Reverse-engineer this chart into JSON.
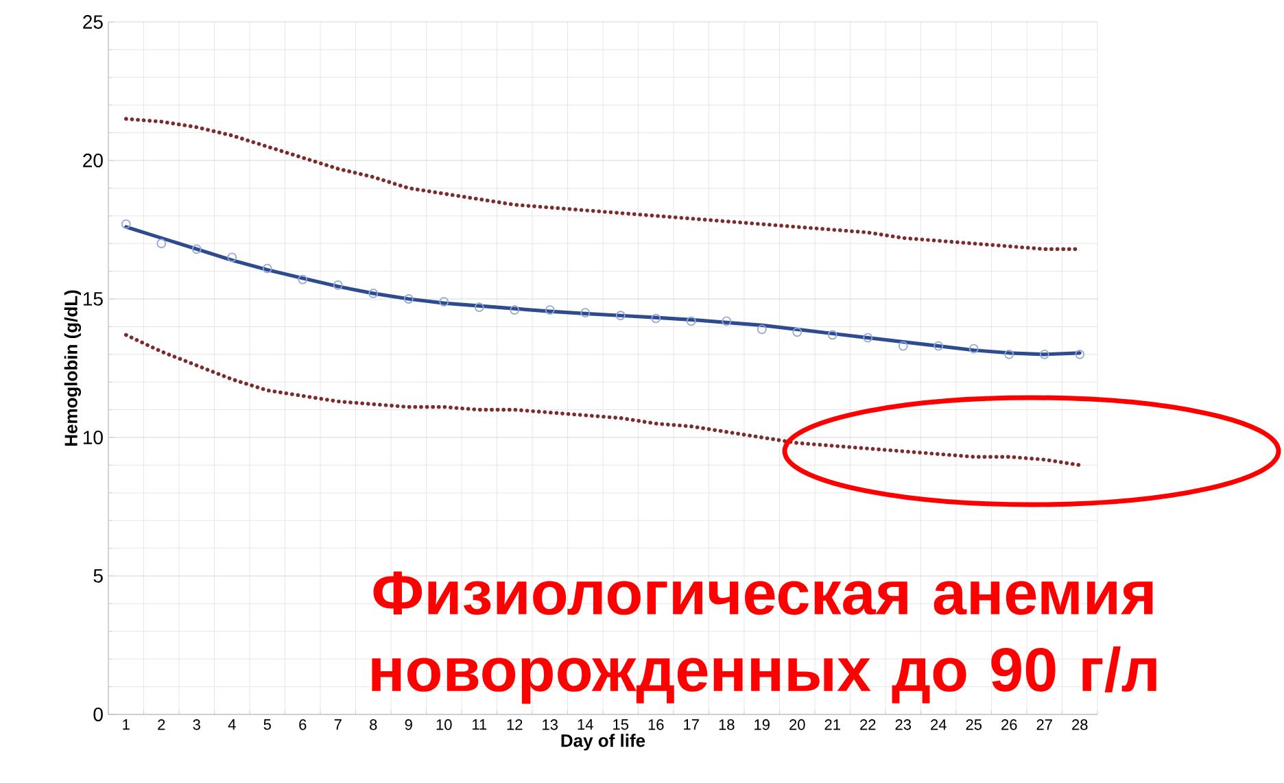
{
  "chart_data": {
    "type": "line",
    "xlabel": "Day of life",
    "ylabel": "Hemoglobin (g/dL)",
    "categories": [
      "1",
      "2",
      "3",
      "4",
      "5",
      "6",
      "7",
      "8",
      "9",
      "10",
      "11",
      "12",
      "13",
      "14",
      "15",
      "16",
      "17",
      "18",
      "19",
      "20",
      "21",
      "22",
      "23",
      "24",
      "25",
      "26",
      "27",
      "28"
    ],
    "series": [
      {
        "type": "scatter",
        "color": "#8fa8d8",
        "marker": "circle",
        "values": [
          17.7,
          17.0,
          16.8,
          16.5,
          16.1,
          15.7,
          15.5,
          15.2,
          15.0,
          14.9,
          14.7,
          14.6,
          14.6,
          14.5,
          14.4,
          14.3,
          14.2,
          14.2,
          13.9,
          13.8,
          13.7,
          13.6,
          13.3,
          13.3,
          13.2,
          13.0,
          13.0,
          13.0
        ]
      },
      {
        "color": "#2f4b8f",
        "line_style": "solid",
        "values": [
          17.6,
          17.2,
          16.8,
          16.4,
          16.05,
          15.75,
          15.45,
          15.2,
          15.0,
          14.85,
          14.75,
          14.65,
          14.55,
          14.47,
          14.4,
          14.33,
          14.25,
          14.15,
          14.05,
          13.9,
          13.75,
          13.6,
          13.45,
          13.3,
          13.15,
          13.05,
          13.0,
          13.05
        ]
      },
      {
        "color": "#7b2c2c",
        "line_style": "dotted",
        "values": [
          21.5,
          21.4,
          21.2,
          20.9,
          20.5,
          20.1,
          19.7,
          19.4,
          19.0,
          18.8,
          18.6,
          18.4,
          18.3,
          18.2,
          18.1,
          18.0,
          17.9,
          17.8,
          17.7,
          17.6,
          17.5,
          17.4,
          17.2,
          17.1,
          17.0,
          16.9,
          16.8,
          16.8
        ]
      },
      {
        "color": "#7b2c2c",
        "line_style": "dotted",
        "values": [
          13.7,
          13.1,
          12.6,
          12.1,
          11.7,
          11.5,
          11.3,
          11.2,
          11.1,
          11.1,
          11.0,
          11.0,
          10.9,
          10.8,
          10.7,
          10.5,
          10.4,
          10.2,
          10.0,
          9.8,
          9.7,
          9.6,
          9.5,
          9.4,
          9.3,
          9.3,
          9.2,
          9.0
        ]
      }
    ],
    "ylim": [
      0,
      25
    ],
    "yticks": [
      0,
      5,
      10,
      15,
      20,
      25
    ],
    "grid": true,
    "annotations": [
      "Физиологическая анемия новорожденных до 90 г/л"
    ]
  }
}
